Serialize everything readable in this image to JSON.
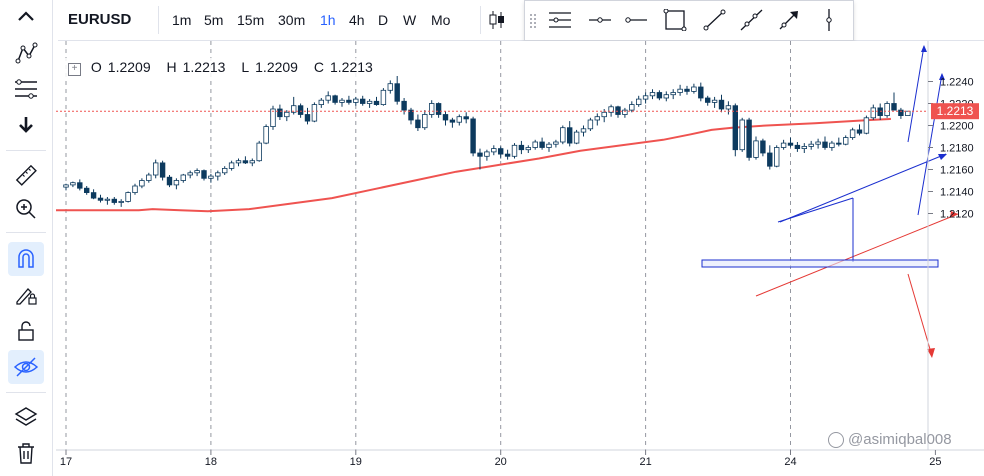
{
  "symbol": "EURUSD",
  "timeframes": [
    "1m",
    "5m",
    "15m",
    "30m",
    "1h",
    "4h",
    "D",
    "W",
    "Mo"
  ],
  "active_timeframe": "1h",
  "ohlc": {
    "o_label": "O",
    "o": "1.2209",
    "h_label": "H",
    "h": "1.2213",
    "l_label": "L",
    "l": "1.2209",
    "c_label": "C",
    "c": "1.2213"
  },
  "colors": {
    "up": "#ffffff",
    "down": "#0d3a5e",
    "ma": "#ef5350",
    "blue_lines": "#1b2fcf",
    "red_lines": "#e53935",
    "price_tag": "#ef5350",
    "accent": "#2962ff"
  },
  "price_tag": "1.2213",
  "watermark": "@asimiqbal008",
  "left_toolbar_icons": [
    "cursor-cross-icon",
    "trend-line-icon",
    "fibonacci-icon",
    "arrow-down-icon",
    "ruler-icon",
    "zoom-in-icon",
    "magnet-icon",
    "pencil-lock-icon",
    "lock-icon",
    "eye-hidden-icon",
    "layers-icon",
    "trash-icon"
  ],
  "drawing_toolbar_icons": [
    "horizontal-lines-icon",
    "horizontal-ray-icon",
    "horizontal-segment-icon",
    "rectangle-icon",
    "trend-line-icon",
    "extended-line-icon",
    "arrow-line-icon",
    "vertical-line-icon"
  ],
  "chart_data": {
    "type": "candlestick",
    "x_ticks": [
      {
        "label": "17",
        "i": 0
      },
      {
        "label": "18",
        "i": 21
      },
      {
        "label": "19",
        "i": 42
      },
      {
        "label": "20",
        "i": 63
      },
      {
        "label": "21",
        "i": 84
      },
      {
        "label": "24",
        "i": 105
      },
      {
        "label": "25",
        "i": 126
      }
    ],
    "y_ticks": [
      1.212,
      1.214,
      1.216,
      1.218,
      1.22,
      1.222,
      1.224
    ],
    "ylim": [
      1.2113,
      1.225
    ],
    "last_price": 1.2213,
    "candles": [
      [
        1.2144,
        1.2147,
        1.2141,
        1.2146
      ],
      [
        1.2146,
        1.2149,
        1.2144,
        1.2148
      ],
      [
        1.2148,
        1.2151,
        1.2141,
        1.2143
      ],
      [
        1.2143,
        1.2145,
        1.2137,
        1.2139
      ],
      [
        1.2139,
        1.2142,
        1.2133,
        1.2134
      ],
      [
        1.2134,
        1.2137,
        1.213,
        1.2132
      ],
      [
        1.2132,
        1.2135,
        1.2128,
        1.2133
      ],
      [
        1.2133,
        1.2135,
        1.2128,
        1.213
      ],
      [
        1.213,
        1.2133,
        1.2126,
        1.2131
      ],
      [
        1.2131,
        1.214,
        1.213,
        1.2139
      ],
      [
        1.2139,
        1.2147,
        1.2137,
        1.2145
      ],
      [
        1.2145,
        1.2152,
        1.2143,
        1.215
      ],
      [
        1.215,
        1.2157,
        1.2148,
        1.2155
      ],
      [
        1.2155,
        1.2169,
        1.2152,
        1.2166
      ],
      [
        1.2166,
        1.2168,
        1.215,
        1.2153
      ],
      [
        1.2153,
        1.2155,
        1.2144,
        1.2146
      ],
      [
        1.2146,
        1.2152,
        1.2142,
        1.215
      ],
      [
        1.215,
        1.2156,
        1.2148,
        1.2155
      ],
      [
        1.2155,
        1.2159,
        1.2152,
        1.2157
      ],
      [
        1.2157,
        1.2161,
        1.2154,
        1.2159
      ],
      [
        1.2159,
        1.216,
        1.215,
        1.2152
      ],
      [
        1.2152,
        1.2156,
        1.2148,
        1.2154
      ],
      [
        1.2154,
        1.2159,
        1.215,
        1.2157
      ],
      [
        1.2157,
        1.2163,
        1.2155,
        1.2161
      ],
      [
        1.2161,
        1.2168,
        1.2159,
        1.2166
      ],
      [
        1.2166,
        1.217,
        1.2163,
        1.2168
      ],
      [
        1.2168,
        1.2172,
        1.2165,
        1.2166
      ],
      [
        1.2166,
        1.217,
        1.2163,
        1.2168
      ],
      [
        1.2168,
        1.2186,
        1.2167,
        1.2184
      ],
      [
        1.2184,
        1.2201,
        1.2183,
        1.2199
      ],
      [
        1.2199,
        1.2218,
        1.2196,
        1.2215
      ],
      [
        1.2215,
        1.2219,
        1.2205,
        1.2208
      ],
      [
        1.2208,
        1.2214,
        1.2204,
        1.2212
      ],
      [
        1.2212,
        1.2226,
        1.221,
        1.2218
      ],
      [
        1.2218,
        1.222,
        1.2207,
        1.221
      ],
      [
        1.221,
        1.2216,
        1.2201,
        1.2204
      ],
      [
        1.2204,
        1.2221,
        1.2203,
        1.2219
      ],
      [
        1.2219,
        1.2225,
        1.2216,
        1.2223
      ],
      [
        1.2223,
        1.2231,
        1.222,
        1.2227
      ],
      [
        1.2227,
        1.2228,
        1.2219,
        1.2221
      ],
      [
        1.2221,
        1.2225,
        1.2217,
        1.2223
      ],
      [
        1.2223,
        1.2227,
        1.2219,
        1.2221
      ],
      [
        1.2221,
        1.2226,
        1.2218,
        1.2224
      ],
      [
        1.2224,
        1.2227,
        1.2218,
        1.222
      ],
      [
        1.222,
        1.2224,
        1.2216,
        1.2222
      ],
      [
        1.2222,
        1.2226,
        1.2218,
        1.2219
      ],
      [
        1.2219,
        1.2234,
        1.2218,
        1.2232
      ],
      [
        1.2232,
        1.2241,
        1.2229,
        1.2238
      ],
      [
        1.2238,
        1.2245,
        1.2219,
        1.2222
      ],
      [
        1.2222,
        1.2225,
        1.221,
        1.2214
      ],
      [
        1.2214,
        1.2216,
        1.2201,
        1.2205
      ],
      [
        1.2205,
        1.221,
        1.2195,
        1.2198
      ],
      [
        1.2198,
        1.2214,
        1.2196,
        1.221
      ],
      [
        1.221,
        1.2223,
        1.2207,
        1.222
      ],
      [
        1.222,
        1.2221,
        1.2207,
        1.221
      ],
      [
        1.221,
        1.2213,
        1.22,
        1.2205
      ],
      [
        1.2205,
        1.2207,
        1.2198,
        1.2203
      ],
      [
        1.2203,
        1.221,
        1.22,
        1.2208
      ],
      [
        1.2208,
        1.2212,
        1.2202,
        1.2206
      ],
      [
        1.2206,
        1.2208,
        1.2172,
        1.2175
      ],
      [
        1.2175,
        1.2179,
        1.216,
        1.2172
      ],
      [
        1.2172,
        1.2178,
        1.2168,
        1.2176
      ],
      [
        1.2176,
        1.2182,
        1.2173,
        1.2179
      ],
      [
        1.2179,
        1.2181,
        1.217,
        1.2174
      ],
      [
        1.2174,
        1.2178,
        1.2169,
        1.2172
      ],
      [
        1.2172,
        1.2184,
        1.217,
        1.2182
      ],
      [
        1.2182,
        1.2186,
        1.2174,
        1.2178
      ],
      [
        1.2178,
        1.2182,
        1.2175,
        1.218
      ],
      [
        1.218,
        1.2187,
        1.2178,
        1.2185
      ],
      [
        1.2185,
        1.2189,
        1.2178,
        1.218
      ],
      [
        1.218,
        1.2185,
        1.2176,
        1.2183
      ],
      [
        1.2183,
        1.2187,
        1.218,
        1.2185
      ],
      [
        1.2185,
        1.22,
        1.2183,
        1.2198
      ],
      [
        1.2198,
        1.2204,
        1.2181,
        1.2184
      ],
      [
        1.2184,
        1.2196,
        1.2183,
        1.2194
      ],
      [
        1.2194,
        1.22,
        1.219,
        1.2197
      ],
      [
        1.2197,
        1.2207,
        1.2195,
        1.2205
      ],
      [
        1.2205,
        1.2211,
        1.22,
        1.2208
      ],
      [
        1.2208,
        1.2215,
        1.2203,
        1.2212
      ],
      [
        1.2212,
        1.2219,
        1.2208,
        1.2217
      ],
      [
        1.2217,
        1.2218,
        1.2207,
        1.221
      ],
      [
        1.221,
        1.2216,
        1.2207,
        1.2214
      ],
      [
        1.2214,
        1.2222,
        1.2212,
        1.2219
      ],
      [
        1.2219,
        1.2227,
        1.2217,
        1.2224
      ],
      [
        1.2224,
        1.223,
        1.222,
        1.2227
      ],
      [
        1.2227,
        1.2233,
        1.2224,
        1.223
      ],
      [
        1.223,
        1.2232,
        1.2223,
        1.2225
      ],
      [
        1.2225,
        1.2231,
        1.2222,
        1.2228
      ],
      [
        1.2228,
        1.2233,
        1.2224,
        1.223
      ],
      [
        1.223,
        1.2237,
        1.2227,
        1.2233
      ],
      [
        1.2233,
        1.2236,
        1.2228,
        1.2231
      ],
      [
        1.2231,
        1.2238,
        1.2229,
        1.2235
      ],
      [
        1.2235,
        1.2239,
        1.2222,
        1.2225
      ],
      [
        1.2225,
        1.2227,
        1.2218,
        1.2221
      ],
      [
        1.2221,
        1.2226,
        1.2216,
        1.2223
      ],
      [
        1.2223,
        1.2228,
        1.2212,
        1.2215
      ],
      [
        1.2215,
        1.2222,
        1.221,
        1.2218
      ],
      [
        1.2218,
        1.222,
        1.2172,
        1.2178
      ],
      [
        1.2178,
        1.2207,
        1.2176,
        1.2205
      ],
      [
        1.2205,
        1.2207,
        1.2168,
        1.2171
      ],
      [
        1.2171,
        1.219,
        1.2169,
        1.2186
      ],
      [
        1.2186,
        1.2188,
        1.2172,
        1.2175
      ],
      [
        1.2175,
        1.2182,
        1.216,
        1.2163
      ],
      [
        1.2163,
        1.2182,
        1.2162,
        1.218
      ],
      [
        1.218,
        1.2187,
        1.2178,
        1.2184
      ],
      [
        1.2184,
        1.2189,
        1.218,
        1.2182
      ],
      [
        1.2182,
        1.2185,
        1.2176,
        1.2179
      ],
      [
        1.2179,
        1.2184,
        1.2175,
        1.2181
      ],
      [
        1.2181,
        1.2186,
        1.2178,
        1.2183
      ],
      [
        1.2183,
        1.2188,
        1.2179,
        1.2185
      ],
      [
        1.2185,
        1.219,
        1.2178,
        1.218
      ],
      [
        1.218,
        1.2186,
        1.2177,
        1.2184
      ],
      [
        1.2184,
        1.2189,
        1.2181,
        1.2183
      ],
      [
        1.2183,
        1.2191,
        1.2182,
        1.2189
      ],
      [
        1.2189,
        1.2198,
        1.2187,
        1.2196
      ],
      [
        1.2196,
        1.2201,
        1.2191,
        1.2193
      ],
      [
        1.2193,
        1.2209,
        1.2192,
        1.2207
      ],
      [
        1.2207,
        1.2219,
        1.2205,
        1.2216
      ],
      [
        1.2216,
        1.222,
        1.2205,
        1.2209
      ],
      [
        1.2209,
        1.2222,
        1.2207,
        1.222
      ],
      [
        1.222,
        1.223,
        1.2214,
        1.2214
      ],
      [
        1.2214,
        1.2216,
        1.2206,
        1.2209
      ],
      [
        1.2209,
        1.2213,
        1.2209,
        1.2213
      ]
    ],
    "moving_average": {
      "points": [
        [
          0,
          1.2123
        ],
        [
          6,
          1.2123
        ],
        [
          12,
          1.2123
        ],
        [
          14,
          1.2124
        ],
        [
          18,
          1.2123
        ],
        [
          22,
          1.2122
        ],
        [
          28,
          1.2124
        ],
        [
          34,
          1.2129
        ],
        [
          40,
          1.2134
        ],
        [
          46,
          1.2142
        ],
        [
          52,
          1.215
        ],
        [
          58,
          1.2158
        ],
        [
          63,
          1.2163
        ],
        [
          70,
          1.217
        ],
        [
          76,
          1.2177
        ],
        [
          82,
          1.2182
        ],
        [
          88,
          1.2187
        ],
        [
          92,
          1.2192
        ],
        [
          95,
          1.2196
        ],
        [
          98,
          1.2198
        ],
        [
          103,
          1.22
        ],
        [
          110,
          1.2202
        ],
        [
          118,
          1.2205
        ],
        [
          121,
          1.2206
        ]
      ]
    }
  }
}
